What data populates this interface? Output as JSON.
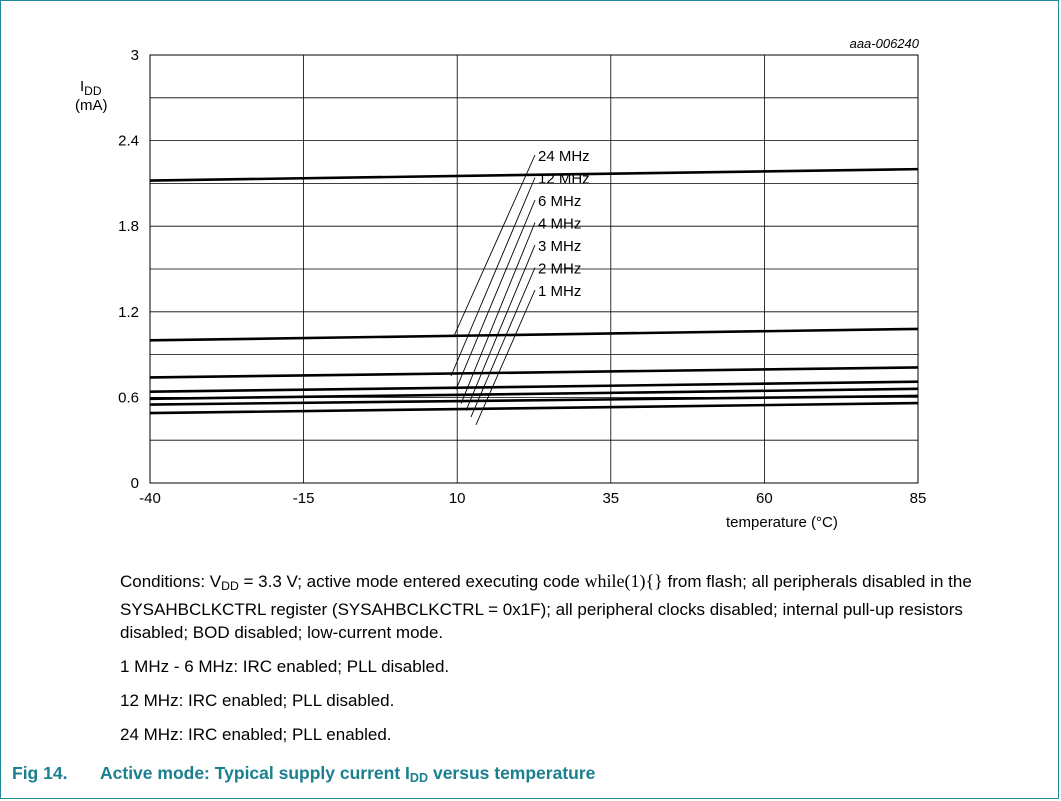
{
  "chart_data": {
    "type": "line",
    "id_tag": "aaa-006240",
    "ylabel": {
      "name": "I",
      "sub": "DD",
      "unit": "(mA)"
    },
    "xlabel": "temperature (°C)",
    "xlim": [
      -40,
      85
    ],
    "ylim": [
      0,
      3
    ],
    "x_ticks": [
      "-40",
      "-15",
      "10",
      "35",
      "60",
      "85"
    ],
    "y_ticks": [
      "0",
      "0.6",
      "1.2",
      "1.8",
      "2.4",
      "3"
    ],
    "grid": true,
    "x": [
      -40,
      85
    ],
    "series": [
      {
        "name": "24 MHz",
        "values": [
          2.12,
          2.2
        ]
      },
      {
        "name": "12 MHz",
        "values": [
          1.0,
          1.08
        ]
      },
      {
        "name": "6 MHz",
        "values": [
          0.74,
          0.81
        ]
      },
      {
        "name": "4 MHz",
        "values": [
          0.64,
          0.71
        ]
      },
      {
        "name": "3 MHz",
        "values": [
          0.59,
          0.66
        ]
      },
      {
        "name": "2 MHz",
        "values": [
          0.55,
          0.61
        ]
      },
      {
        "name": "1 MHz",
        "values": [
          0.49,
          0.56
        ]
      }
    ],
    "line_color": "#000000",
    "grid_color": "#000000"
  },
  "notes": {
    "conditions": {
      "prefix": "Conditions: V",
      "vdd_sub": "DD",
      "after_vdd": " = 3.3 V; active mode entered executing code ",
      "code": "while(1){}",
      "rest": " from flash; all peripherals disabled in the SYSAHBCLKCTRL register (SYSAHBCLKCTRL = 0x1F); all peripheral clocks disabled; internal pull-up resistors disabled; BOD disabled; low-current mode."
    },
    "line2": "1 MHz - 6 MHz: IRC enabled; PLL disabled.",
    "line3": "12 MHz: IRC enabled; PLL disabled.",
    "line4": "24 MHz: IRC enabled; PLL enabled."
  },
  "caption": {
    "number": "Fig 14.",
    "title_a": "Active mode: Typical supply current I",
    "title_sub": "DD",
    "title_b": " versus temperature",
    "color": "#1a7f8e"
  }
}
